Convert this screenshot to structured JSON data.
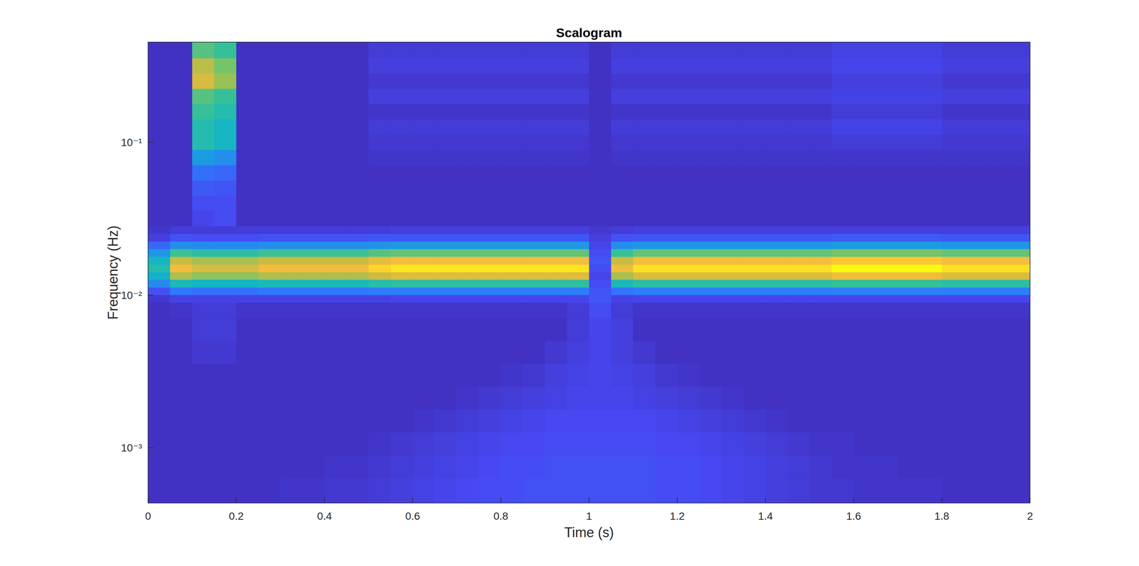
{
  "chart_data": {
    "type": "heatmap",
    "title": "Scalogram",
    "xlabel": "Time (s)",
    "ylabel": "Frequency (Hz)",
    "log": "y",
    "xlim": [
      0,
      2
    ],
    "ylim": [
      0.000435,
      0.453
    ],
    "xticks": [
      0,
      0.2,
      0.4,
      0.6,
      0.8,
      1,
      1.2,
      1.4,
      1.6,
      1.8,
      2
    ],
    "yticks": [
      {
        "value": 0.001,
        "label": "10⁻³"
      },
      {
        "value": 0.01,
        "label": "10⁻²"
      },
      {
        "value": 0.1,
        "label": "10⁻¹"
      }
    ],
    "clim": [
      0,
      1
    ],
    "x_edges": [
      0,
      0.05,
      0.1,
      0.15,
      0.2,
      0.25,
      0.3,
      0.35,
      0.4,
      0.45,
      0.5,
      0.55,
      0.6,
      0.65,
      0.7,
      0.75,
      0.8,
      0.85,
      0.9,
      0.95,
      1,
      1.05,
      1.1,
      1.15,
      1.2,
      1.25,
      1.3,
      1.35,
      1.4,
      1.45,
      1.5,
      1.55,
      1.6,
      1.65,
      1.7,
      1.75,
      1.8,
      1.85,
      1.9,
      1.95,
      2
    ],
    "y_edges": [
      0.453,
      0.3548,
      0.2818,
      0.2239,
      0.1778,
      0.1413,
      0.1122,
      0.0891,
      0.0708,
      0.0562,
      0.0447,
      0.0355,
      0.0282,
      0.0251,
      0.0224,
      0.02,
      0.0178,
      0.0158,
      0.0141,
      0.0126,
      0.0112,
      0.01,
      0.00891,
      0.00708,
      0.00501,
      0.00355,
      0.00251,
      0.00178,
      0.00126,
      0.000891,
      0.000631,
      0.000435
    ],
    "values": [
      [
        0.04,
        0.04,
        0.6,
        0.55,
        0.04,
        0.04,
        0.04,
        0.04,
        0.04,
        0.04,
        0.07,
        0.07,
        0.07,
        0.07,
        0.07,
        0.07,
        0.07,
        0.07,
        0.07,
        0.07,
        0.04,
        0.07,
        0.07,
        0.07,
        0.07,
        0.07,
        0.07,
        0.07,
        0.07,
        0.07,
        0.07,
        0.09,
        0.09,
        0.09,
        0.09,
        0.09,
        0.07,
        0.07,
        0.07,
        0.07
      ],
      [
        0.04,
        0.04,
        0.75,
        0.65,
        0.04,
        0.04,
        0.04,
        0.04,
        0.04,
        0.04,
        0.08,
        0.08,
        0.08,
        0.08,
        0.08,
        0.08,
        0.08,
        0.08,
        0.08,
        0.08,
        0.04,
        0.08,
        0.08,
        0.08,
        0.08,
        0.08,
        0.08,
        0.08,
        0.08,
        0.08,
        0.08,
        0.1,
        0.1,
        0.1,
        0.1,
        0.1,
        0.08,
        0.08,
        0.08,
        0.08
      ],
      [
        0.04,
        0.04,
        0.8,
        0.7,
        0.04,
        0.04,
        0.04,
        0.04,
        0.04,
        0.04,
        0.06,
        0.06,
        0.06,
        0.06,
        0.06,
        0.06,
        0.06,
        0.06,
        0.06,
        0.06,
        0.04,
        0.06,
        0.06,
        0.06,
        0.06,
        0.06,
        0.06,
        0.06,
        0.06,
        0.06,
        0.06,
        0.08,
        0.08,
        0.08,
        0.08,
        0.08,
        0.06,
        0.06,
        0.06,
        0.06
      ],
      [
        0.04,
        0.04,
        0.6,
        0.55,
        0.04,
        0.04,
        0.04,
        0.04,
        0.04,
        0.04,
        0.08,
        0.08,
        0.08,
        0.08,
        0.08,
        0.08,
        0.08,
        0.08,
        0.08,
        0.08,
        0.04,
        0.08,
        0.08,
        0.08,
        0.08,
        0.08,
        0.08,
        0.08,
        0.08,
        0.08,
        0.08,
        0.09,
        0.09,
        0.09,
        0.09,
        0.09,
        0.08,
        0.08,
        0.08,
        0.08
      ],
      [
        0.04,
        0.04,
        0.55,
        0.5,
        0.04,
        0.04,
        0.04,
        0.04,
        0.04,
        0.04,
        0.05,
        0.05,
        0.05,
        0.05,
        0.05,
        0.05,
        0.05,
        0.05,
        0.05,
        0.05,
        0.04,
        0.05,
        0.05,
        0.05,
        0.05,
        0.05,
        0.05,
        0.05,
        0.05,
        0.05,
        0.05,
        0.07,
        0.07,
        0.07,
        0.07,
        0.07,
        0.05,
        0.05,
        0.05,
        0.05
      ],
      [
        0.04,
        0.04,
        0.5,
        0.45,
        0.04,
        0.04,
        0.04,
        0.04,
        0.04,
        0.04,
        0.07,
        0.07,
        0.07,
        0.07,
        0.07,
        0.07,
        0.07,
        0.07,
        0.07,
        0.07,
        0.04,
        0.07,
        0.07,
        0.07,
        0.07,
        0.07,
        0.07,
        0.07,
        0.07,
        0.07,
        0.07,
        0.09,
        0.09,
        0.09,
        0.09,
        0.09,
        0.07,
        0.07,
        0.07,
        0.07
      ],
      [
        0.04,
        0.04,
        0.5,
        0.45,
        0.04,
        0.04,
        0.04,
        0.04,
        0.04,
        0.04,
        0.06,
        0.06,
        0.06,
        0.06,
        0.06,
        0.06,
        0.06,
        0.06,
        0.06,
        0.06,
        0.04,
        0.06,
        0.06,
        0.06,
        0.06,
        0.06,
        0.06,
        0.06,
        0.06,
        0.06,
        0.06,
        0.07,
        0.07,
        0.07,
        0.07,
        0.07,
        0.06,
        0.06,
        0.06,
        0.06
      ],
      [
        0.04,
        0.04,
        0.35,
        0.3,
        0.04,
        0.04,
        0.04,
        0.04,
        0.04,
        0.04,
        0.05,
        0.05,
        0.05,
        0.05,
        0.05,
        0.05,
        0.05,
        0.05,
        0.05,
        0.05,
        0.04,
        0.05,
        0.05,
        0.05,
        0.05,
        0.05,
        0.05,
        0.05,
        0.05,
        0.05,
        0.05,
        0.05,
        0.05,
        0.05,
        0.05,
        0.05,
        0.05,
        0.05,
        0.05,
        0.05
      ],
      [
        0.04,
        0.04,
        0.2,
        0.18,
        0.04,
        0.04,
        0.04,
        0.04,
        0.04,
        0.04,
        0.04,
        0.04,
        0.04,
        0.04,
        0.04,
        0.04,
        0.04,
        0.04,
        0.04,
        0.04,
        0.04,
        0.04,
        0.04,
        0.04,
        0.04,
        0.04,
        0.04,
        0.04,
        0.04,
        0.04,
        0.04,
        0.04,
        0.04,
        0.04,
        0.04,
        0.04,
        0.04,
        0.04,
        0.04,
        0.04
      ],
      [
        0.04,
        0.04,
        0.15,
        0.14,
        0.04,
        0.04,
        0.04,
        0.04,
        0.04,
        0.04,
        0.04,
        0.04,
        0.04,
        0.04,
        0.04,
        0.04,
        0.04,
        0.04,
        0.04,
        0.04,
        0.04,
        0.04,
        0.04,
        0.04,
        0.04,
        0.04,
        0.04,
        0.04,
        0.04,
        0.04,
        0.04,
        0.04,
        0.04,
        0.04,
        0.04,
        0.04,
        0.04,
        0.04,
        0.04,
        0.04
      ],
      [
        0.04,
        0.04,
        0.12,
        0.12,
        0.04,
        0.04,
        0.04,
        0.04,
        0.04,
        0.04,
        0.04,
        0.04,
        0.04,
        0.04,
        0.04,
        0.04,
        0.04,
        0.04,
        0.04,
        0.04,
        0.04,
        0.04,
        0.04,
        0.04,
        0.04,
        0.04,
        0.04,
        0.04,
        0.04,
        0.04,
        0.04,
        0.04,
        0.04,
        0.04,
        0.04,
        0.04,
        0.04,
        0.04,
        0.04,
        0.04
      ],
      [
        0.04,
        0.04,
        0.1,
        0.12,
        0.04,
        0.04,
        0.04,
        0.04,
        0.04,
        0.04,
        0.04,
        0.04,
        0.04,
        0.04,
        0.04,
        0.04,
        0.04,
        0.04,
        0.04,
        0.04,
        0.04,
        0.04,
        0.04,
        0.04,
        0.04,
        0.04,
        0.04,
        0.04,
        0.04,
        0.04,
        0.04,
        0.04,
        0.04,
        0.04,
        0.04,
        0.04,
        0.04,
        0.04,
        0.04,
        0.04
      ],
      [
        0.05,
        0.07,
        0.07,
        0.07,
        0.07,
        0.07,
        0.07,
        0.07,
        0.07,
        0.07,
        0.07,
        0.08,
        0.08,
        0.08,
        0.08,
        0.08,
        0.08,
        0.08,
        0.08,
        0.08,
        0.06,
        0.07,
        0.08,
        0.08,
        0.08,
        0.08,
        0.08,
        0.08,
        0.08,
        0.08,
        0.08,
        0.08,
        0.08,
        0.08,
        0.08,
        0.08,
        0.08,
        0.08,
        0.08,
        0.08
      ],
      [
        0.08,
        0.13,
        0.12,
        0.12,
        0.12,
        0.13,
        0.13,
        0.13,
        0.13,
        0.13,
        0.14,
        0.14,
        0.14,
        0.14,
        0.14,
        0.14,
        0.14,
        0.14,
        0.14,
        0.14,
        0.08,
        0.13,
        0.14,
        0.14,
        0.14,
        0.14,
        0.14,
        0.14,
        0.14,
        0.14,
        0.14,
        0.15,
        0.15,
        0.15,
        0.15,
        0.15,
        0.14,
        0.14,
        0.14,
        0.14
      ],
      [
        0.18,
        0.3,
        0.28,
        0.28,
        0.28,
        0.3,
        0.3,
        0.3,
        0.3,
        0.3,
        0.32,
        0.34,
        0.34,
        0.34,
        0.34,
        0.34,
        0.34,
        0.34,
        0.34,
        0.34,
        0.1,
        0.3,
        0.33,
        0.33,
        0.33,
        0.33,
        0.33,
        0.33,
        0.33,
        0.33,
        0.33,
        0.35,
        0.35,
        0.35,
        0.35,
        0.35,
        0.33,
        0.33,
        0.33,
        0.33
      ],
      [
        0.33,
        0.56,
        0.52,
        0.52,
        0.52,
        0.56,
        0.56,
        0.56,
        0.56,
        0.56,
        0.6,
        0.62,
        0.62,
        0.62,
        0.62,
        0.62,
        0.62,
        0.62,
        0.62,
        0.62,
        0.12,
        0.55,
        0.62,
        0.62,
        0.62,
        0.62,
        0.62,
        0.62,
        0.62,
        0.62,
        0.62,
        0.65,
        0.65,
        0.65,
        0.65,
        0.65,
        0.62,
        0.62,
        0.62,
        0.62
      ],
      [
        0.45,
        0.77,
        0.72,
        0.72,
        0.72,
        0.77,
        0.77,
        0.77,
        0.77,
        0.77,
        0.83,
        0.86,
        0.86,
        0.86,
        0.86,
        0.86,
        0.86,
        0.86,
        0.86,
        0.86,
        0.14,
        0.77,
        0.86,
        0.86,
        0.86,
        0.86,
        0.86,
        0.86,
        0.86,
        0.86,
        0.86,
        0.9,
        0.9,
        0.9,
        0.9,
        0.9,
        0.86,
        0.86,
        0.86,
        0.86
      ],
      [
        0.5,
        0.86,
        0.8,
        0.8,
        0.8,
        0.86,
        0.86,
        0.86,
        0.86,
        0.86,
        0.92,
        0.96,
        0.96,
        0.96,
        0.96,
        0.96,
        0.96,
        0.96,
        0.96,
        0.96,
        0.12,
        0.85,
        0.95,
        0.95,
        0.95,
        0.95,
        0.95,
        0.95,
        0.95,
        0.95,
        0.95,
        1,
        1,
        1,
        1,
        1,
        0.95,
        0.95,
        0.95,
        0.95
      ],
      [
        0.43,
        0.73,
        0.68,
        0.68,
        0.68,
        0.73,
        0.73,
        0.73,
        0.73,
        0.73,
        0.78,
        0.82,
        0.82,
        0.82,
        0.82,
        0.82,
        0.82,
        0.82,
        0.82,
        0.82,
        0.1,
        0.72,
        0.81,
        0.81,
        0.81,
        0.81,
        0.81,
        0.81,
        0.81,
        0.81,
        0.81,
        0.85,
        0.85,
        0.85,
        0.85,
        0.85,
        0.81,
        0.81,
        0.81,
        0.81
      ],
      [
        0.28,
        0.47,
        0.44,
        0.44,
        0.44,
        0.47,
        0.47,
        0.47,
        0.47,
        0.47,
        0.51,
        0.53,
        0.53,
        0.53,
        0.53,
        0.53,
        0.53,
        0.53,
        0.53,
        0.53,
        0.12,
        0.47,
        0.52,
        0.52,
        0.52,
        0.52,
        0.52,
        0.52,
        0.52,
        0.52,
        0.52,
        0.55,
        0.55,
        0.55,
        0.55,
        0.55,
        0.52,
        0.52,
        0.52,
        0.52
      ],
      [
        0.13,
        0.22,
        0.2,
        0.2,
        0.2,
        0.22,
        0.22,
        0.22,
        0.22,
        0.22,
        0.23,
        0.24,
        0.24,
        0.24,
        0.24,
        0.24,
        0.24,
        0.24,
        0.24,
        0.24,
        0.14,
        0.21,
        0.24,
        0.24,
        0.24,
        0.24,
        0.24,
        0.24,
        0.24,
        0.24,
        0.24,
        0.25,
        0.25,
        0.25,
        0.25,
        0.25,
        0.24,
        0.24,
        0.24,
        0.24
      ],
      [
        0.06,
        0.09,
        0.09,
        0.09,
        0.09,
        0.09,
        0.09,
        0.09,
        0.09,
        0.09,
        0.09,
        0.1,
        0.1,
        0.1,
        0.1,
        0.1,
        0.1,
        0.1,
        0.1,
        0.1,
        0.14,
        0.09,
        0.1,
        0.1,
        0.1,
        0.1,
        0.1,
        0.1,
        0.1,
        0.1,
        0.1,
        0.1,
        0.1,
        0.1,
        0.1,
        0.1,
        0.1,
        0.1,
        0.1,
        0.1
      ],
      [
        0.04,
        0.05,
        0.07,
        0.07,
        0.05,
        0.05,
        0.05,
        0.05,
        0.05,
        0.05,
        0.05,
        0.05,
        0.05,
        0.05,
        0.05,
        0.05,
        0.05,
        0.05,
        0.05,
        0.07,
        0.12,
        0.07,
        0.05,
        0.05,
        0.05,
        0.05,
        0.05,
        0.05,
        0.05,
        0.05,
        0.05,
        0.05,
        0.05,
        0.05,
        0.05,
        0.05,
        0.05,
        0.05,
        0.05,
        0.05
      ],
      [
        0.04,
        0.04,
        0.07,
        0.07,
        0.04,
        0.04,
        0.04,
        0.04,
        0.04,
        0.04,
        0.04,
        0.04,
        0.04,
        0.04,
        0.04,
        0.04,
        0.04,
        0.04,
        0.04,
        0.07,
        0.1,
        0.08,
        0.04,
        0.04,
        0.04,
        0.04,
        0.04,
        0.04,
        0.04,
        0.04,
        0.04,
        0.04,
        0.04,
        0.04,
        0.04,
        0.04,
        0.04,
        0.04,
        0.04,
        0.04
      ],
      [
        0.04,
        0.04,
        0.06,
        0.06,
        0.04,
        0.04,
        0.04,
        0.04,
        0.04,
        0.04,
        0.04,
        0.04,
        0.04,
        0.04,
        0.04,
        0.04,
        0.04,
        0.04,
        0.06,
        0.08,
        0.1,
        0.08,
        0.06,
        0.04,
        0.04,
        0.04,
        0.04,
        0.04,
        0.04,
        0.04,
        0.04,
        0.04,
        0.04,
        0.04,
        0.04,
        0.04,
        0.04,
        0.04,
        0.04,
        0.04
      ],
      [
        0.04,
        0.04,
        0.04,
        0.04,
        0.04,
        0.04,
        0.04,
        0.04,
        0.04,
        0.04,
        0.04,
        0.04,
        0.04,
        0.04,
        0.04,
        0.04,
        0.05,
        0.06,
        0.08,
        0.09,
        0.1,
        0.09,
        0.08,
        0.06,
        0.05,
        0.04,
        0.04,
        0.04,
        0.04,
        0.04,
        0.04,
        0.04,
        0.04,
        0.04,
        0.04,
        0.04,
        0.04,
        0.04,
        0.04,
        0.04
      ],
      [
        0.04,
        0.04,
        0.04,
        0.04,
        0.04,
        0.04,
        0.04,
        0.04,
        0.04,
        0.04,
        0.04,
        0.04,
        0.04,
        0.04,
        0.05,
        0.06,
        0.07,
        0.08,
        0.09,
        0.1,
        0.1,
        0.1,
        0.09,
        0.08,
        0.07,
        0.06,
        0.05,
        0.04,
        0.04,
        0.04,
        0.04,
        0.04,
        0.04,
        0.04,
        0.04,
        0.04,
        0.04,
        0.04,
        0.04,
        0.04
      ],
      [
        0.04,
        0.04,
        0.04,
        0.04,
        0.04,
        0.04,
        0.04,
        0.04,
        0.04,
        0.04,
        0.04,
        0.04,
        0.05,
        0.06,
        0.07,
        0.08,
        0.09,
        0.1,
        0.11,
        0.11,
        0.11,
        0.11,
        0.11,
        0.1,
        0.09,
        0.08,
        0.07,
        0.06,
        0.05,
        0.04,
        0.04,
        0.04,
        0.04,
        0.04,
        0.04,
        0.04,
        0.04,
        0.04,
        0.04,
        0.04
      ],
      [
        0.04,
        0.04,
        0.04,
        0.04,
        0.04,
        0.04,
        0.04,
        0.04,
        0.04,
        0.04,
        0.05,
        0.06,
        0.07,
        0.08,
        0.09,
        0.1,
        0.11,
        0.11,
        0.12,
        0.12,
        0.12,
        0.12,
        0.12,
        0.11,
        0.11,
        0.1,
        0.09,
        0.08,
        0.07,
        0.06,
        0.05,
        0.05,
        0.04,
        0.04,
        0.04,
        0.04,
        0.04,
        0.04,
        0.04,
        0.04
      ],
      [
        0.04,
        0.04,
        0.04,
        0.04,
        0.04,
        0.04,
        0.04,
        0.04,
        0.05,
        0.05,
        0.06,
        0.07,
        0.08,
        0.09,
        0.1,
        0.11,
        0.12,
        0.12,
        0.13,
        0.13,
        0.13,
        0.13,
        0.13,
        0.12,
        0.12,
        0.11,
        0.1,
        0.09,
        0.08,
        0.07,
        0.06,
        0.05,
        0.05,
        0.05,
        0.04,
        0.04,
        0.04,
        0.04,
        0.04,
        0.04
      ],
      [
        0.04,
        0.04,
        0.04,
        0.04,
        0.04,
        0.04,
        0.05,
        0.05,
        0.06,
        0.06,
        0.07,
        0.08,
        0.09,
        0.1,
        0.11,
        0.12,
        0.12,
        0.13,
        0.13,
        0.13,
        0.13,
        0.13,
        0.13,
        0.12,
        0.12,
        0.11,
        0.1,
        0.09,
        0.08,
        0.07,
        0.06,
        0.06,
        0.05,
        0.05,
        0.05,
        0.05,
        0.04,
        0.04,
        0.04,
        0.04
      ]
    ]
  }
}
